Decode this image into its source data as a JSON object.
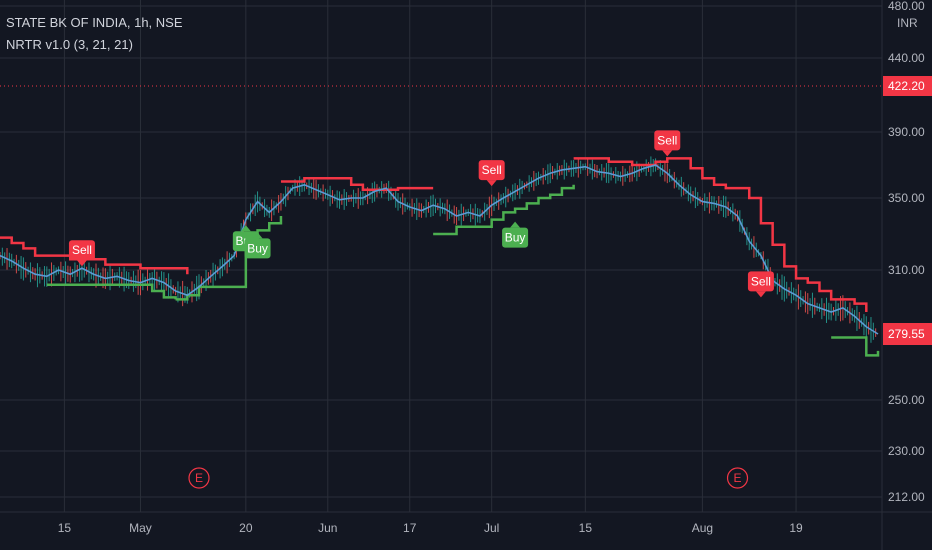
{
  "legend": {
    "symbol_line": "STATE BK OF INDIA, 1h, NSE",
    "indicator_line": "NRTR v1.0 (3, 21, 21)"
  },
  "currency_label": "INR",
  "colors": {
    "background": "#131722",
    "grid": "#2a2e39",
    "price_line": "#5b9bd5",
    "candle_up": "#26a69a",
    "candle_down": "#ef5350",
    "nrtr_bear": "#f23645",
    "nrtr_bull": "#4caf50",
    "tag_red": "#f23645",
    "text": "#b2b5be"
  },
  "chart_data": {
    "type": "line",
    "title": "STATE BK OF INDIA, 1h, NSE",
    "indicator": "NRTR v1.0 (3, 21, 21)",
    "currency": "INR",
    "x_axis_labels": [
      "15",
      "May",
      "20",
      "Jun",
      "17",
      "Jul",
      "15",
      "Aug",
      "19"
    ],
    "y_tick_labels": [
      "480.00",
      "440.00",
      "390.00",
      "350.00",
      "310.00",
      "250.00",
      "230.00",
      "212.00"
    ],
    "y_ticks": [
      480,
      440,
      390,
      350,
      310,
      250,
      230,
      212
    ],
    "last_price": 279.55,
    "last_price_label": "279.55",
    "reference_price": 422.2,
    "reference_price_label": "422.20",
    "price_series": {
      "name": "Close",
      "values": [
        318,
        315,
        311,
        308,
        307,
        310,
        308,
        311,
        308,
        306,
        307,
        305,
        304,
        306,
        304,
        300,
        298,
        302,
        307,
        312,
        318,
        338,
        348,
        342,
        348,
        356,
        358,
        355,
        352,
        349,
        350,
        350,
        354,
        356,
        348,
        345,
        343,
        346,
        344,
        340,
        342,
        340,
        346,
        350,
        354,
        358,
        362,
        365,
        367,
        368,
        369,
        366,
        365,
        363,
        365,
        368,
        370,
        365,
        358,
        352,
        348,
        347,
        345,
        340,
        326,
        318,
        305,
        301,
        298,
        294,
        292,
        290,
        292,
        288,
        283,
        279.55
      ]
    },
    "nrtr_bear": {
      "name": "NRTR",
      "segments": [
        {
          "from": 0,
          "to": 16,
          "values": [
            328,
            325,
            322,
            318,
            318,
            318,
            316,
            316,
            316,
            313,
            313,
            313,
            311,
            311,
            311,
            311,
            308
          ]
        },
        {
          "from": 24,
          "to": 37,
          "values": [
            360,
            360,
            362,
            362,
            362,
            362,
            358,
            355,
            355,
            355,
            356,
            356,
            356,
            356
          ]
        },
        {
          "from": 49,
          "to": 75,
          "values": [
            374,
            374,
            374,
            372,
            372,
            370,
            370,
            372,
            374,
            374,
            368,
            362,
            358,
            356,
            356,
            350,
            336,
            324,
            312,
            306,
            304,
            300,
            296,
            296,
            294,
            290
          ]
        }
      ]
    },
    "nrtr_bull": {
      "name": "NRTR",
      "segments": [
        {
          "from": 4,
          "to": 15,
          "values": [
            303,
            303,
            303,
            303,
            303,
            303,
            303,
            303,
            303,
            300,
            297,
            296
          ]
        },
        {
          "from": 15,
          "to": 24,
          "values": [
            296,
            298,
            302,
            302,
            302,
            302,
            320,
            332,
            336,
            340
          ]
        },
        {
          "from": 37,
          "to": 49,
          "values": [
            330,
            330,
            334,
            334,
            334,
            338,
            342,
            344,
            347,
            350,
            352,
            356,
            358
          ]
        },
        {
          "from": 71,
          "to": 75,
          "values": [
            278,
            278,
            278,
            270,
            272
          ]
        }
      ]
    },
    "signals": [
      {
        "label": "Sell",
        "type": "sell",
        "index": 7,
        "price": 311
      },
      {
        "label": "Buy",
        "type": "buy",
        "index": 21,
        "price": 336
      },
      {
        "label": "Buy",
        "type": "buy",
        "index": 22,
        "price": 332
      },
      {
        "label": "Sell",
        "type": "sell",
        "index": 42,
        "price": 356
      },
      {
        "label": "Buy",
        "type": "buy",
        "index": 44,
        "price": 338
      },
      {
        "label": "Sell",
        "type": "sell",
        "index": 57,
        "price": 374
      },
      {
        "label": "Sell",
        "type": "sell",
        "index": 65,
        "price": 296
      }
    ],
    "events": [
      {
        "label": "E",
        "index": 17
      },
      {
        "label": "E",
        "index": 63
      }
    ],
    "grid": true
  }
}
